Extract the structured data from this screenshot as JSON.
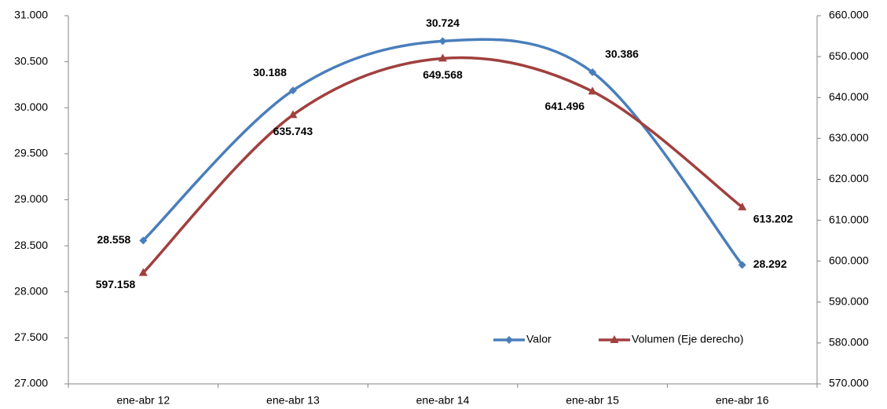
{
  "chart_data": {
    "type": "line",
    "categories": [
      "ene-abr 12",
      "ene-abr 13",
      "ene-abr 14",
      "ene-abr 15",
      "ene-abr 16"
    ],
    "series": [
      {
        "name": "Valor",
        "color": "#4a7ebb",
        "label_color": "#0070c0",
        "marker": "diamond",
        "values": [
          28558,
          30188,
          30724,
          30386,
          28292
        ],
        "value_labels": [
          "28.558",
          "30.188",
          "30.724",
          "30.386",
          "28.292"
        ]
      },
      {
        "name": "Volumen (Eje derecho)",
        "color": "#a0403e",
        "label_color": "#953735",
        "marker": "triangle",
        "axis": "y2",
        "values": [
          597158,
          635743,
          649568,
          641496,
          613202
        ],
        "value_labels": [
          "597.158",
          "635.743",
          "649.568",
          "641.496",
          "613.202"
        ]
      }
    ],
    "ylim": [
      27000,
      31000
    ],
    "yticks": [
      {
        "value": 27000,
        "label": "27.000"
      },
      {
        "value": 27500,
        "label": "27.500"
      },
      {
        "value": 28000,
        "label": "28.000"
      },
      {
        "value": 28500,
        "label": "28.500"
      },
      {
        "value": 29000,
        "label": "29.000"
      },
      {
        "value": 29500,
        "label": "29.500"
      },
      {
        "value": 30000,
        "label": "30.000"
      },
      {
        "value": 30500,
        "label": "30.500"
      },
      {
        "value": 31000,
        "label": "31.000"
      }
    ],
    "y2lim": [
      570000,
      660000
    ],
    "y2ticks": [
      {
        "value": 570000,
        "label": "570.000"
      },
      {
        "value": 580000,
        "label": "580.000"
      },
      {
        "value": 590000,
        "label": "590.000"
      },
      {
        "value": 600000,
        "label": "600.000"
      },
      {
        "value": 610000,
        "label": "610.000"
      },
      {
        "value": 620000,
        "label": "620.000"
      },
      {
        "value": 630000,
        "label": "630.000"
      },
      {
        "value": 640000,
        "label": "640.000"
      },
      {
        "value": 650000,
        "label": "650.000"
      },
      {
        "value": 660000,
        "label": "660.000"
      }
    ],
    "grid": false,
    "smooth": true,
    "legend": "bottom-right"
  }
}
